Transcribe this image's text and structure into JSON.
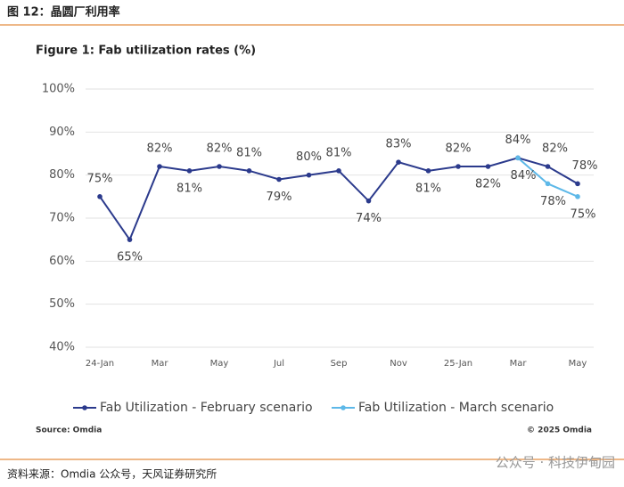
{
  "header": {
    "title": "图 12：晶圆厂利用率"
  },
  "chart_data": {
    "type": "line",
    "title": "Figure 1: Fab utilization rates (%)",
    "categories": [
      "24-Jan",
      null,
      "Mar",
      null,
      "May",
      null,
      "Jul",
      null,
      "Sep",
      null,
      "Nov",
      null,
      "25-Jan",
      null,
      "Mar",
      null,
      "May"
    ],
    "series": [
      {
        "name": "Fab Utilization - February scenario",
        "color": "#2b3a8c",
        "values": [
          75,
          65,
          82,
          81,
          82,
          81,
          79,
          80,
          81,
          74,
          83,
          81,
          82,
          82,
          84,
          82,
          78
        ],
        "value_labels": [
          "75%",
          "65%",
          "82%",
          "81%",
          "82%",
          "81%",
          "79%",
          "80%",
          "81%",
          "74%",
          "83%",
          "81%",
          "82%",
          "82%",
          "84%",
          "82%",
          "78%"
        ]
      },
      {
        "name": "Fab Utilization - March scenario",
        "color": "#5db8e8",
        "values": [
          null,
          null,
          null,
          null,
          null,
          null,
          null,
          null,
          null,
          null,
          null,
          null,
          null,
          null,
          84,
          78,
          75
        ],
        "value_labels": [
          null,
          null,
          null,
          null,
          null,
          null,
          null,
          null,
          null,
          null,
          null,
          null,
          null,
          null,
          "84%",
          "78%",
          "75%"
        ]
      }
    ],
    "ylim": [
      40,
      100
    ],
    "yticks": [
      {
        "value": 40,
        "label": "40%"
      },
      {
        "value": 50,
        "label": "50%"
      },
      {
        "value": 60,
        "label": "60%"
      },
      {
        "value": 70,
        "label": "70%"
      },
      {
        "value": 80,
        "label": "80%"
      },
      {
        "value": 90,
        "label": "90%"
      },
      {
        "value": 100,
        "label": "100%"
      }
    ],
    "grid": true,
    "legend": "bottom",
    "source": "Source: Omdia",
    "copyright": "© 2025 Omdia"
  },
  "footer": {
    "source": "资料来源：Omdia 公众号，天风证券研究所",
    "watermark": "公众号 · 科技伊甸园"
  }
}
